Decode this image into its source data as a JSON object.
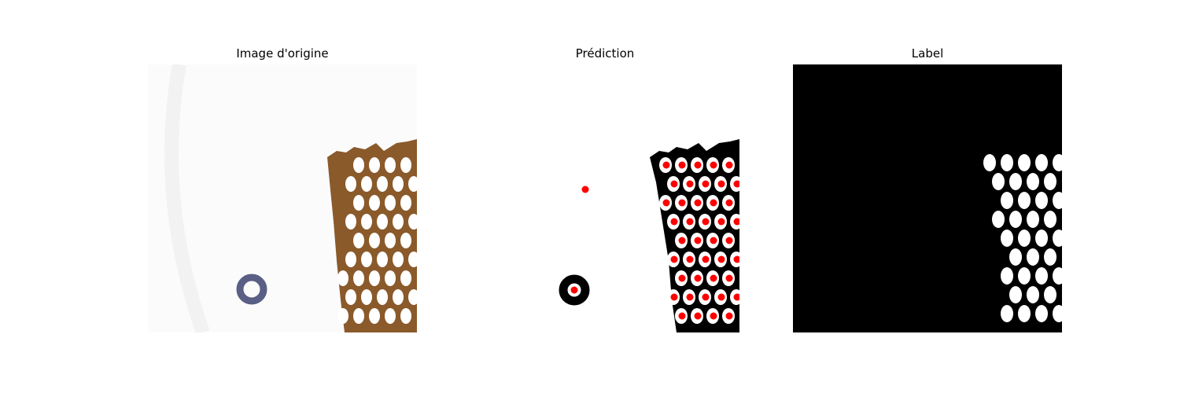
{
  "panels": [
    {
      "title": "Image d'origine"
    },
    {
      "title": "Prédiction"
    },
    {
      "title": "Label"
    }
  ],
  "colors": {
    "background_light": "#fbfbfb",
    "tissue_brown": "#8a5a2b",
    "tissue_dark": "#3d2612",
    "cell_white": "#ffffff",
    "mask_black": "#000000",
    "detection_red": "#ff0000",
    "ring_blue": "#5a5f86"
  },
  "icons": [
    "red-dot-marker",
    "ring-marker"
  ]
}
